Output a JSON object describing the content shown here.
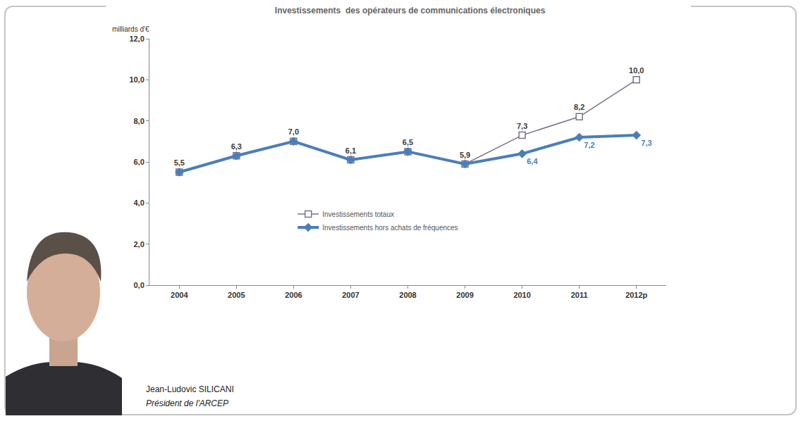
{
  "chart_data": {
    "type": "line",
    "title": "Investissements  des opérateurs de communications électroniques",
    "y_label": "milliards d'€",
    "categories": [
      "2004",
      "2005",
      "2006",
      "2007",
      "2008",
      "2009",
      "2010",
      "2011",
      "2012p"
    ],
    "series": [
      {
        "name": "Investissements totaux",
        "color": "#7b6f8d",
        "marker": "square",
        "values": [
          5.5,
          6.3,
          7.0,
          6.1,
          6.5,
          5.9,
          7.3,
          8.2,
          10.0
        ],
        "value_labels": [
          "5,5",
          "6,3",
          "7,0",
          "6,1",
          "6,5",
          "5,9",
          "7,3",
          "8,2",
          "10,0"
        ]
      },
      {
        "name": "Investissements hors achats de fréquences",
        "color": "#4a7ebb",
        "marker": "diamond",
        "values": [
          5.5,
          6.3,
          7.0,
          6.1,
          6.5,
          5.9,
          6.4,
          7.2,
          7.3
        ],
        "value_labels": [
          null,
          null,
          null,
          null,
          null,
          null,
          "6,4",
          "7,2",
          "7,3"
        ]
      }
    ],
    "ylim": [
      0,
      12
    ],
    "yticks": [
      {
        "value": 0,
        "label": "0,0"
      },
      {
        "value": 2,
        "label": "2,0"
      },
      {
        "value": 4,
        "label": "4,0"
      },
      {
        "value": 6,
        "label": "6,0"
      },
      {
        "value": 8,
        "label": "8,0"
      },
      {
        "value": 10,
        "label": "10,0"
      },
      {
        "value": 12,
        "label": "12,0"
      }
    ],
    "grid": false,
    "legend": "center",
    "data_labels": true
  },
  "caption": {
    "name": "Jean-Ludovic SILICANI",
    "role": "Président de l'ARCEP"
  }
}
